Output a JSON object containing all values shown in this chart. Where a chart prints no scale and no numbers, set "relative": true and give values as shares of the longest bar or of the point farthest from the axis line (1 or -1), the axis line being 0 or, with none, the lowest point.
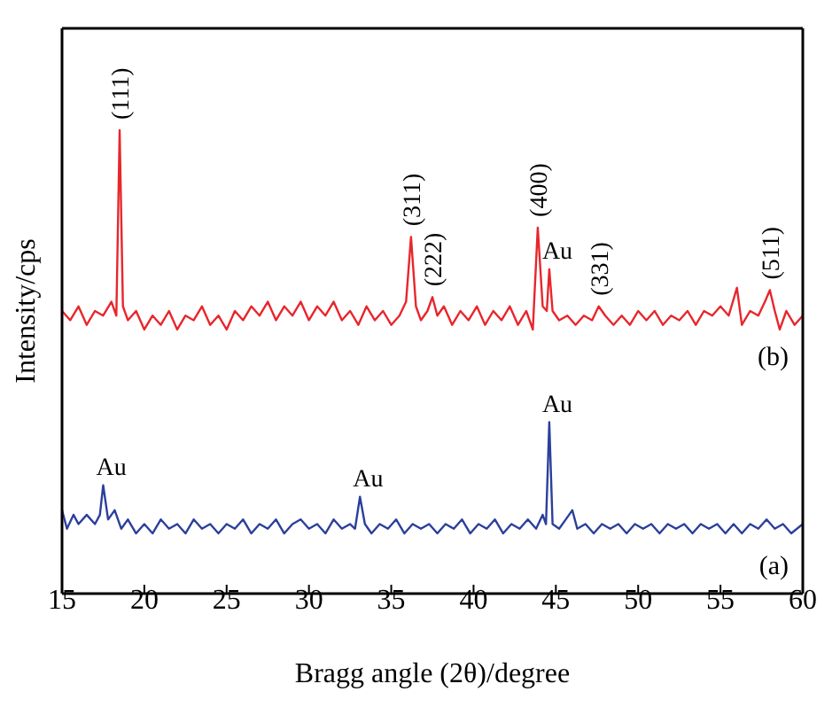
{
  "chart_data": {
    "type": "line",
    "xlabel": "Bragg angle (2θ)/degree",
    "ylabel": "Intensity/cps",
    "relative": true,
    "xlim": [
      15,
      60
    ],
    "xticks": [
      15,
      20,
      25,
      30,
      35,
      40,
      45,
      50,
      55,
      60
    ],
    "marker": "none",
    "line_style": "solid",
    "series": [
      {
        "name": "(b)",
        "color": "#e8262b",
        "x": [
          15,
          15.5,
          16,
          16.5,
          17,
          17.5,
          18,
          18.3,
          18.5,
          18.7,
          19,
          19.5,
          20,
          20.5,
          21,
          21.5,
          22,
          22.5,
          23,
          23.5,
          24,
          24.5,
          25,
          25.5,
          26,
          26.5,
          27,
          27.5,
          28,
          28.5,
          29,
          29.5,
          30,
          30.5,
          31,
          31.5,
          32,
          32.5,
          33,
          33.5,
          34,
          34.5,
          35,
          35.5,
          35.9,
          36.2,
          36.5,
          36.8,
          37.2,
          37.5,
          37.8,
          38.2,
          38.7,
          39.2,
          39.7,
          40.2,
          40.7,
          41.2,
          41.7,
          42.2,
          42.7,
          43.2,
          43.6,
          43.9,
          44.2,
          44.45,
          44.6,
          44.8,
          45.2,
          45.7,
          46.2,
          46.7,
          47.2,
          47.6,
          48,
          48.5,
          49,
          49.5,
          50,
          50.5,
          51,
          51.5,
          52,
          52.5,
          53,
          53.5,
          54,
          54.5,
          55,
          55.5,
          56,
          56.3,
          56.8,
          57.3,
          57.7,
          58,
          58.3,
          58.6,
          59,
          59.5,
          60
        ],
        "values": [
          0.61,
          0.59,
          0.62,
          0.58,
          0.61,
          0.6,
          0.63,
          0.6,
          1,
          0.62,
          0.59,
          0.61,
          0.57,
          0.6,
          0.58,
          0.61,
          0.57,
          0.6,
          0.59,
          0.62,
          0.58,
          0.6,
          0.57,
          0.61,
          0.59,
          0.62,
          0.6,
          0.63,
          0.59,
          0.62,
          0.6,
          0.63,
          0.59,
          0.62,
          0.6,
          0.63,
          0.59,
          0.61,
          0.58,
          0.62,
          0.59,
          0.61,
          0.58,
          0.6,
          0.63,
          0.77,
          0.62,
          0.59,
          0.61,
          0.64,
          0.6,
          0.62,
          0.58,
          0.61,
          0.59,
          0.62,
          0.58,
          0.61,
          0.59,
          0.62,
          0.58,
          0.61,
          0.57,
          0.79,
          0.62,
          0.61,
          0.7,
          0.61,
          0.59,
          0.6,
          0.58,
          0.6,
          0.59,
          0.62,
          0.6,
          0.58,
          0.6,
          0.58,
          0.61,
          0.59,
          0.61,
          0.58,
          0.6,
          0.59,
          0.61,
          0.58,
          0.61,
          0.6,
          0.62,
          0.6,
          0.66,
          0.58,
          0.61,
          0.6,
          0.63,
          0.655,
          0.61,
          0.57,
          0.61,
          0.58,
          0.6
        ]
      },
      {
        "name": "(a)",
        "color": "#2b3f9c",
        "x": [
          15,
          15.3,
          15.7,
          16,
          16.5,
          17,
          17.3,
          17.5,
          17.8,
          18.2,
          18.6,
          19,
          19.5,
          20,
          20.5,
          21,
          21.5,
          22,
          22.5,
          23,
          23.5,
          24,
          24.5,
          25,
          25.5,
          26,
          26.5,
          27,
          27.5,
          28,
          28.5,
          29,
          29.5,
          30,
          30.5,
          31,
          31.5,
          32,
          32.5,
          32.8,
          33.1,
          33.4,
          33.8,
          34.3,
          34.8,
          35.3,
          35.8,
          36.3,
          36.8,
          37.3,
          37.8,
          38.3,
          38.8,
          39.3,
          39.8,
          40.3,
          40.8,
          41.3,
          41.8,
          42.3,
          42.8,
          43.3,
          43.8,
          44.2,
          44.4,
          44.6,
          44.8,
          45.2,
          45.6,
          46,
          46.3,
          46.8,
          47.3,
          47.8,
          48.3,
          48.8,
          49.3,
          49.8,
          50.3,
          50.8,
          51.3,
          51.8,
          52.3,
          52.8,
          53.3,
          53.8,
          54.3,
          54.8,
          55.3,
          55.8,
          56.3,
          56.8,
          57.3,
          57.8,
          58.3,
          58.8,
          59.3,
          60
        ],
        "values": [
          0.18,
          0.14,
          0.17,
          0.15,
          0.17,
          0.15,
          0.17,
          0.234,
          0.16,
          0.18,
          0.14,
          0.16,
          0.13,
          0.15,
          0.13,
          0.16,
          0.14,
          0.15,
          0.13,
          0.16,
          0.14,
          0.15,
          0.13,
          0.15,
          0.14,
          0.16,
          0.13,
          0.15,
          0.14,
          0.16,
          0.13,
          0.15,
          0.16,
          0.14,
          0.15,
          0.13,
          0.16,
          0.14,
          0.15,
          0.14,
          0.209,
          0.15,
          0.13,
          0.15,
          0.14,
          0.16,
          0.13,
          0.15,
          0.14,
          0.15,
          0.13,
          0.15,
          0.14,
          0.16,
          0.13,
          0.15,
          0.14,
          0.16,
          0.13,
          0.15,
          0.14,
          0.16,
          0.14,
          0.17,
          0.15,
          0.37,
          0.15,
          0.14,
          0.16,
          0.18,
          0.14,
          0.15,
          0.13,
          0.15,
          0.14,
          0.15,
          0.13,
          0.15,
          0.14,
          0.15,
          0.13,
          0.15,
          0.14,
          0.15,
          0.13,
          0.15,
          0.14,
          0.15,
          0.13,
          0.15,
          0.13,
          0.15,
          0.14,
          0.16,
          0.14,
          0.15,
          0.13,
          0.15
        ]
      }
    ],
    "annotations": [
      {
        "text": "(111)",
        "x": 18.5,
        "y": 1
      },
      {
        "text": "(311)",
        "x": 36.2,
        "y": 0.77
      },
      {
        "text": "(222)",
        "x": 37.5,
        "y": 0.64
      },
      {
        "text": "(400)",
        "x": 43.9,
        "y": 0.79
      },
      {
        "text": "Au",
        "x": 44.6,
        "y": 0.7
      },
      {
        "text": "(331)",
        "x": 47.6,
        "y": 0.62
      },
      {
        "text": "(511)",
        "x": 58,
        "y": 0.655
      },
      {
        "text": "Au",
        "x": 17.5,
        "y": 0.234
      },
      {
        "text": "Au",
        "x": 33.1,
        "y": 0.209
      },
      {
        "text": "Au",
        "x": 44.6,
        "y": 0.37
      }
    ]
  }
}
